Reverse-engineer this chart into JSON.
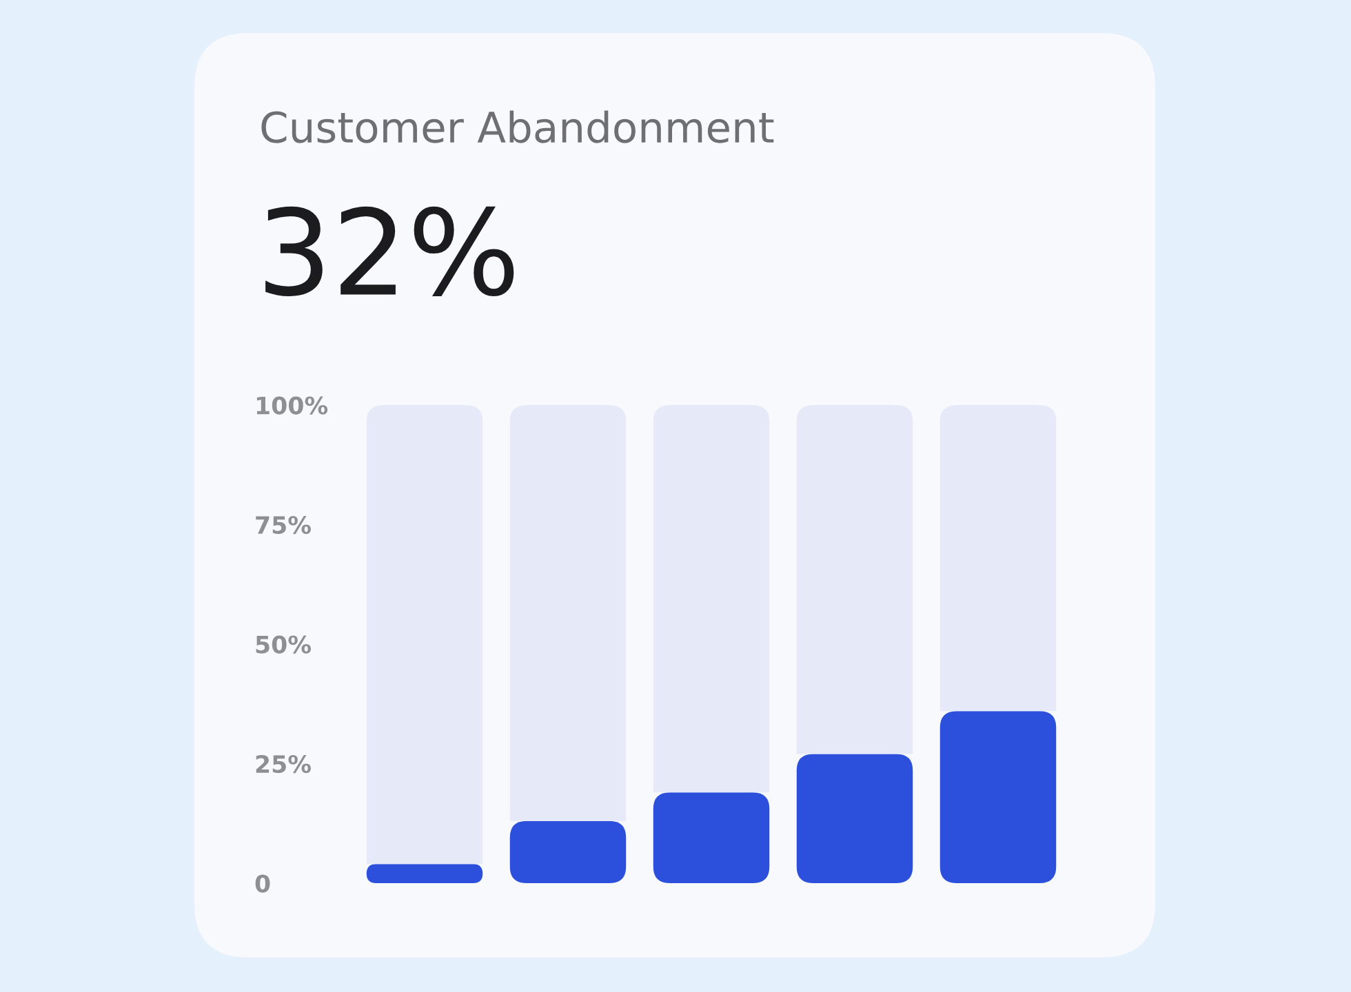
{
  "chart_data": {
    "type": "bar",
    "title": "Customer Abandonment",
    "subtitle": "32%",
    "stacked": true,
    "categories": [
      null,
      null,
      null,
      null,
      null
    ],
    "series": [
      {
        "color": "#2c50dc",
        "values": [
          4,
          13,
          19,
          27,
          36
        ]
      },
      {
        "color": "#e6eaf8",
        "values": [
          96,
          87,
          81,
          73,
          64
        ]
      }
    ],
    "ylim": [
      0,
      100
    ],
    "yticks": [
      {
        "value": 0,
        "label": "0"
      },
      {
        "value": 25,
        "label": "25%"
      },
      {
        "value": 50,
        "label": "50%"
      },
      {
        "value": 75,
        "label": "75%"
      },
      {
        "value": 100,
        "label": "100%"
      }
    ],
    "grid": false,
    "legend": false
  }
}
